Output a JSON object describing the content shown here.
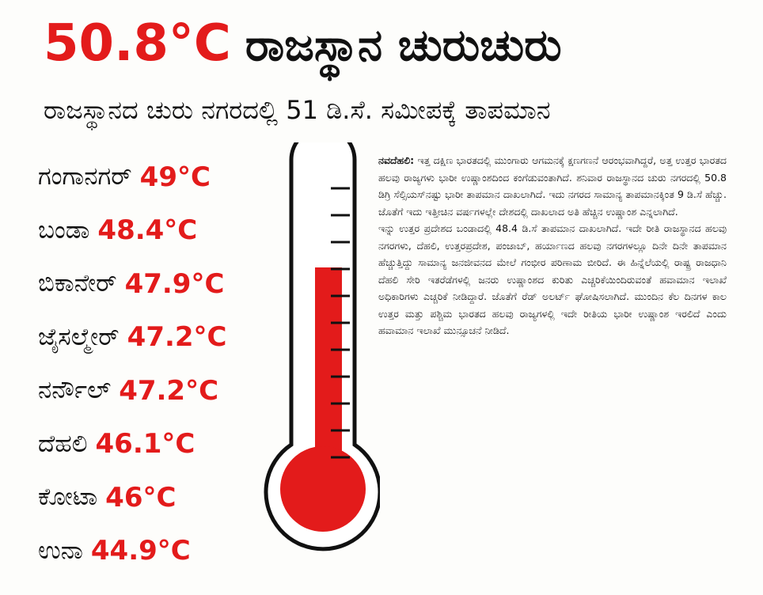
{
  "headline": {
    "temperature": "50.8°C",
    "title": "ರಾಜಸ್ಥಾನ ಚುರುಚುರು"
  },
  "subtitle": "ರಾಜಸ್ಥಾನದ ಚುರು ನಗರದಲ್ಲಿ 51 ಡಿ.ಸೆ. ಸಮೀಪಕ್ಕೆ ತಾಪಮಾನ",
  "cities": [
    {
      "name": "ಗಂಗಾನಗರ್",
      "temp": "49°C"
    },
    {
      "name": "ಬಂಡಾ",
      "temp": "48.4°C"
    },
    {
      "name": "ಬಿಕಾನೇರ್",
      "temp": "47.9°C"
    },
    {
      "name": "ಜೈಸಲ್ಮೇರ್",
      "temp": "47.2°C"
    },
    {
      "name": "ನರ್ನೌಲ್",
      "temp": "47.2°C"
    },
    {
      "name": "ದೆಹಲಿ",
      "temp": "46.1°C"
    },
    {
      "name": "ಕೋಟಾ",
      "temp": "46°C"
    },
    {
      "name": "ಉನಾ",
      "temp": "44.9°C"
    }
  ],
  "article": {
    "dateline": "ನವದೆಹಲಿ:",
    "paragraphs": [
      "ಇತ್ತ ದಕ್ಷಿಣ ಭಾರತದಲ್ಲಿ ಮುಂಗಾರು ಆಗಮನಕ್ಕೆ ಕ್ಷಣಗಣನೆ ಆರಂಭವಾಗಿದ್ದರೆ, ಅತ್ತ ಉತ್ತರ ಭಾರತದ ಹಲವು ರಾಜ್ಯಗಳು ಭಾರೀ ಉಷ್ಣಾಂಶದಿಂದ ಕಂಗೆಡುವಂತಾಗಿದೆ. ಶನಿವಾರ ರಾಜಸ್ಥಾನದ ಚುರು ನಗರದಲ್ಲಿ 50.8 ಡಿಗ್ರಿ ಸೆಲ್ಸಿಯಸ್‌ನಷ್ಟು ಭಾರೀ ತಾಪಮಾನ ದಾಖಲಾಗಿದೆ. ಇದು ನಗರದ ಸಾಮಾನ್ಯ ತಾಪಮಾನಕ್ಕಿಂತ 9 ಡಿ.ಸೆ ಹೆಚ್ಚು. ಜೊತೆಗೆ ಇದು ಇತ್ತೀಚಿನ ವರ್ಷಗಳಲ್ಲೇ ದೇಶದಲ್ಲಿ ದಾಖಲಾದ ಅತಿ ಹೆಚ್ಚಿನ ಉಷ್ಣಾಂಶ ಎನ್ನಲಾಗಿದೆ.",
      "ಇನ್ನು ಉತ್ತರ ಪ್ರದೇಶದ ಬಂಡಾದಲ್ಲಿ 48.4 ಡಿ.ಸೆ ತಾಪಮಾನ ದಾಖಲಾಗಿದೆ. ಇದೇ ರೀತಿ ರಾಜಸ್ಥಾನದ ಹಲವು ನಗರಗಳು, ದೆಹಲಿ, ಉತ್ತರಪ್ರದೇಶ, ಪಂಜಾಬ್, ಹರ್ಯಾಣದ ಹಲವು ನಗರಗಳಲ್ಲೂ ದಿನೇ ದಿನೇ ತಾಪಮಾನ ಹೆಚ್ಚುತ್ತಿದ್ದು ಸಾಮಾನ್ಯ ಜನಜೀವನದ ಮೇಲೆ ಗಂಭೀರ ಪರಿಣಾಮ ಬೀರಿದೆ. ಈ ಹಿನ್ನೆಲೆಯಲ್ಲಿ ರಾಷ್ಟ್ರ ರಾಜಧಾನಿ ದೆಹಲಿ ಸೇರಿ ಇತರೆಡೆಗಳಲ್ಲಿ ಜನರು ಉಷ್ಣಾಂಶದ ಕುರಿತು ಎಚ್ಚರಿಕೆಯಿಂದಿರುವಂತೆ ಹವಾಮಾನ ಇಲಾಖೆ ಅಧಿಕಾರಿಗಳು ಎಚ್ಚರಿಕೆ ನೀಡಿದ್ದಾರೆ. ಜೊತೆಗೆ ರೆಡ್ ಅಲರ್ಟ್ ಘೋಷಿಸಲಾಗಿದೆ. ಮುಂದಿನ ಕೆಲ ದಿನಗಳ ಕಾಲ ಉತ್ತರ ಮತ್ತು ಪಶ್ಚಿಮ ಭಾರತದ ಹಲವು ರಾಜ್ಯಗಳಲ್ಲಿ ಇದೇ ರೀತಿಯ ಭಾರೀ ಉಷ್ಣಾಂಶ ಇರಲಿದೆ ಎಂದು ಹವಾಮಾನ ಇಲಾಖೆ ಮುನ್ಸೂಚನೆ ನೀಡಿದೆ."
    ]
  }
}
